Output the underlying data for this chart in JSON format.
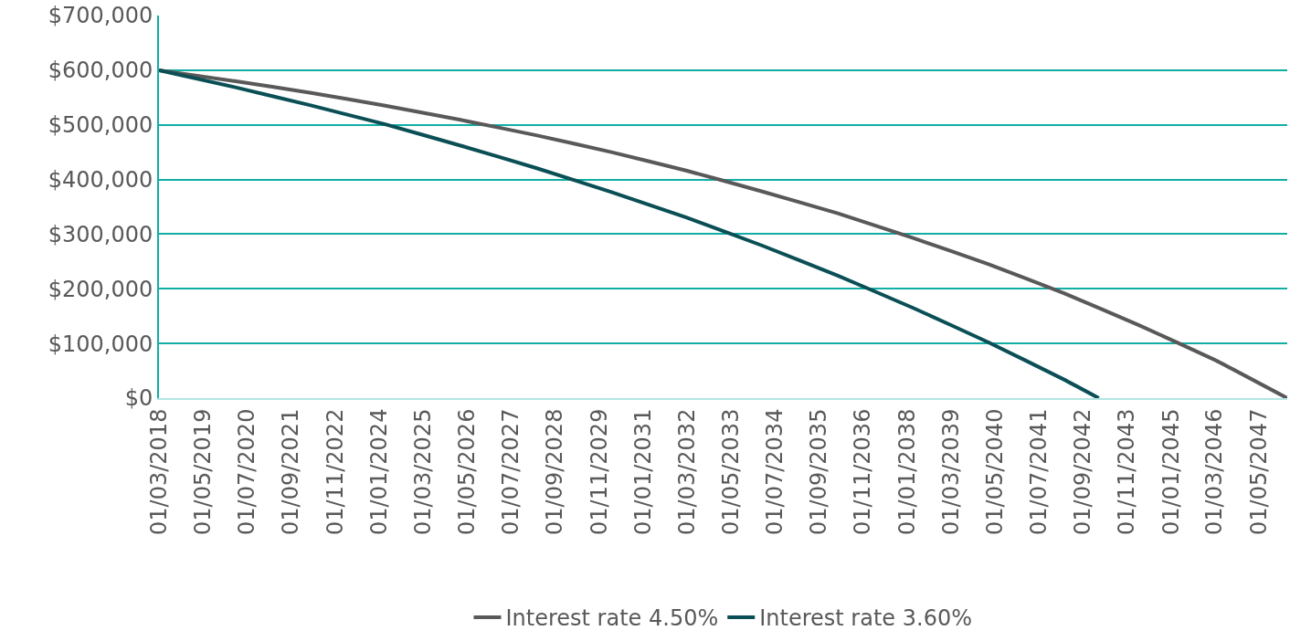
{
  "chart_data": {
    "type": "line",
    "xlim": [
      "2018-03-01",
      "2048-02-01"
    ],
    "xticks": [
      {
        "value": "2018-03-01",
        "label": "01/03/2018"
      },
      {
        "value": "2019-05-01",
        "label": "01/05/2019"
      },
      {
        "value": "2020-07-01",
        "label": "01/07/2020"
      },
      {
        "value": "2021-09-01",
        "label": "01/09/2021"
      },
      {
        "value": "2022-11-01",
        "label": "01/11/2022"
      },
      {
        "value": "2024-01-01",
        "label": "01/01/2024"
      },
      {
        "value": "2025-03-01",
        "label": "01/03/2025"
      },
      {
        "value": "2026-05-01",
        "label": "01/05/2026"
      },
      {
        "value": "2027-07-01",
        "label": "01/07/2027"
      },
      {
        "value": "2028-09-01",
        "label": "01/09/2028"
      },
      {
        "value": "2029-11-01",
        "label": "01/11/2029"
      },
      {
        "value": "2031-01-01",
        "label": "01/01/2031"
      },
      {
        "value": "2032-03-01",
        "label": "01/03/2032"
      },
      {
        "value": "2033-05-01",
        "label": "01/05/2033"
      },
      {
        "value": "2034-07-01",
        "label": "01/07/2034"
      },
      {
        "value": "2035-09-01",
        "label": "01/09/2035"
      },
      {
        "value": "2036-11-01",
        "label": "01/11/2036"
      },
      {
        "value": "2038-01-01",
        "label": "01/01/2038"
      },
      {
        "value": "2039-03-01",
        "label": "01/03/2039"
      },
      {
        "value": "2040-05-01",
        "label": "01/05/2040"
      },
      {
        "value": "2041-07-01",
        "label": "01/07/2041"
      },
      {
        "value": "2042-09-01",
        "label": "01/09/2042"
      },
      {
        "value": "2043-11-01",
        "label": "01/11/2043"
      },
      {
        "value": "2045-01-01",
        "label": "01/01/2045"
      },
      {
        "value": "2046-03-01",
        "label": "01/03/2046"
      },
      {
        "value": "2047-05-01",
        "label": "01/05/2047"
      }
    ],
    "ylim": [
      0,
      700000
    ],
    "yticks": [
      {
        "value": 0,
        "label": "$0"
      },
      {
        "value": 100000,
        "label": "$100,000"
      },
      {
        "value": 200000,
        "label": "$200,000"
      },
      {
        "value": 300000,
        "label": "$300,000"
      },
      {
        "value": 400000,
        "label": "$400,000"
      },
      {
        "value": 500000,
        "label": "$500,000"
      },
      {
        "value": 600000,
        "label": "$600,000"
      },
      {
        "value": 700000,
        "label": "$700,000"
      }
    ],
    "grid": "y",
    "legend": "bottom",
    "marker": "none",
    "line_style": "solid",
    "series": [
      {
        "name": "Interest rate 4.50%",
        "color": "#595959",
        "x": [
          "2018-03-01",
          "2020-03-01",
          "2022-03-01",
          "2024-03-01",
          "2026-03-01",
          "2028-03-01",
          "2030-03-01",
          "2032-03-01",
          "2034-03-01",
          "2036-03-01",
          "2038-03-01",
          "2040-03-01",
          "2042-03-01",
          "2044-03-01",
          "2046-03-01",
          "2048-02-01"
        ],
        "values": [
          600000,
          580000,
          559000,
          535000,
          509000,
          481000,
          450000,
          416000,
          378000,
          338000,
          293000,
          245000,
          192000,
          133000,
          70000,
          0
        ]
      },
      {
        "name": "Interest rate 3.60%",
        "color": "#0a4f55",
        "x": [
          "2018-03-01",
          "2020-03-01",
          "2022-03-01",
          "2024-03-01",
          "2026-03-01",
          "2028-03-01",
          "2030-03-01",
          "2032-03-01",
          "2034-03-01",
          "2036-03-01",
          "2038-03-01",
          "2040-03-01",
          "2042-03-01",
          "2043-02-01"
        ],
        "values": [
          600000,
          569000,
          536000,
          501000,
          462000,
          421000,
          377000,
          330000,
          279000,
          224000,
          165000,
          102000,
          34000,
          0
        ]
      }
    ]
  }
}
